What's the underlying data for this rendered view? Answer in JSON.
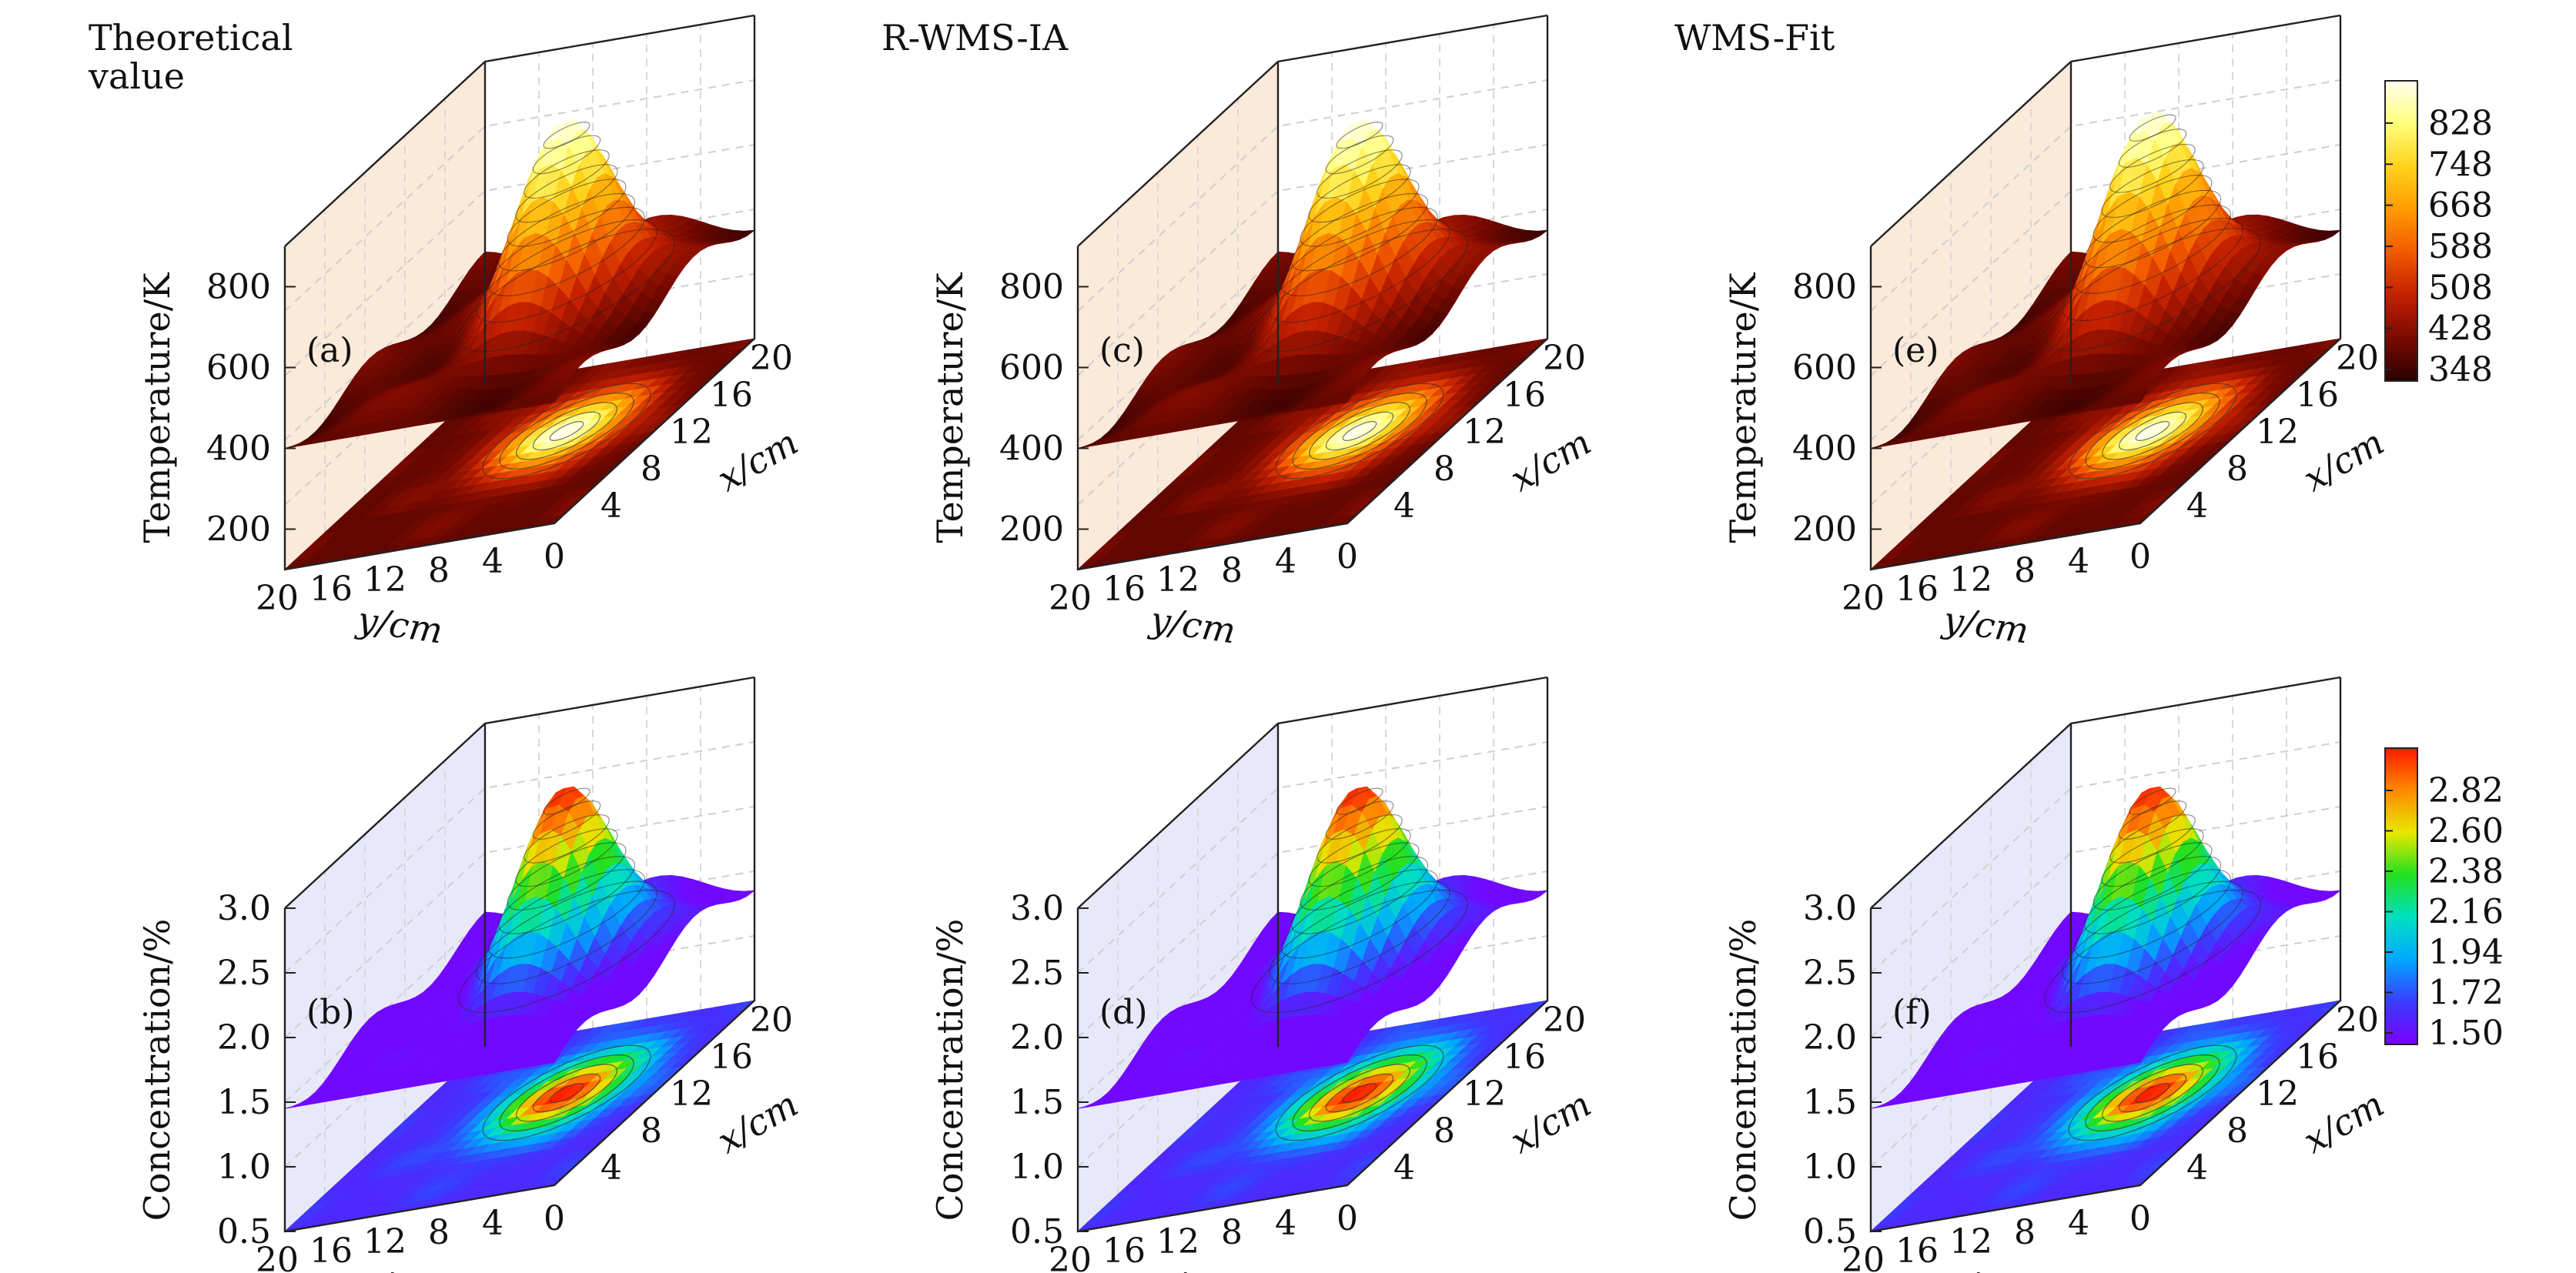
{
  "figure": {
    "rows": 2,
    "cols": 3
  },
  "colorbars": [
    {
      "name": "temperature-colorbar",
      "colormap": [
        "#2a0000",
        "#7a0a00",
        "#c42000",
        "#f25a00",
        "#ff9a00",
        "#ffd21a",
        "#ffff7a",
        "#ffffee"
      ],
      "ticks": [
        "828",
        "748",
        "668",
        "588",
        "508",
        "428",
        "348"
      ]
    },
    {
      "name": "concentration-colorbar",
      "colormap": [
        "#7a00ff",
        "#3b3bff",
        "#00a8ff",
        "#00e0c0",
        "#20e020",
        "#e8e800",
        "#ff8a00",
        "#ff1a00"
      ],
      "ticks": [
        "2.82",
        "2.60",
        "2.38",
        "2.16",
        "1.94",
        "1.72",
        "1.50"
      ]
    }
  ],
  "chart_data": [
    {
      "type": "surface",
      "panel_label": "(a)",
      "title": "Theoretical value",
      "zlabel": "Temperature/K",
      "xlabel": "x/cm",
      "ylabel": "y/cm",
      "zlim": [
        100,
        900
      ],
      "z_ticks": [
        "800",
        "600",
        "400",
        "200"
      ],
      "x_ticks": [
        "4",
        "8",
        "12",
        "16",
        "20"
      ],
      "y_ticks": [
        "20",
        "16",
        "12",
        "8",
        "4"
      ],
      "origin_tick": "0",
      "peak": {
        "x": 12,
        "y": 8,
        "z": 880
      },
      "base_level": 400,
      "min_value": 348,
      "colormap_index": 0
    },
    {
      "type": "surface",
      "panel_label": "(c)",
      "title": "R-WMS-IA",
      "zlabel": "Temperature/K",
      "xlabel": "x/cm",
      "ylabel": "y/cm",
      "zlim": [
        100,
        900
      ],
      "z_ticks": [
        "800",
        "600",
        "400",
        "200"
      ],
      "x_ticks": [
        "4",
        "8",
        "12",
        "16",
        "20"
      ],
      "y_ticks": [
        "20",
        "16",
        "12",
        "8",
        "4"
      ],
      "origin_tick": "0",
      "peak": {
        "x": 12,
        "y": 8,
        "z": 880
      },
      "base_level": 400,
      "min_value": 348,
      "colormap_index": 0
    },
    {
      "type": "surface",
      "panel_label": "(e)",
      "title": "WMS-Fit",
      "zlabel": "Temperature/K",
      "xlabel": "x/cm",
      "ylabel": "y/cm",
      "zlim": [
        100,
        900
      ],
      "z_ticks": [
        "800",
        "600",
        "400",
        "200"
      ],
      "x_ticks": [
        "4",
        "8",
        "12",
        "16",
        "20"
      ],
      "y_ticks": [
        "20",
        "16",
        "12",
        "8",
        "4"
      ],
      "origin_tick": "0",
      "peak": {
        "x": 12,
        "y": 8,
        "z": 900
      },
      "base_level": 400,
      "min_value": 348,
      "colormap_index": 0
    },
    {
      "type": "surface",
      "panel_label": "(b)",
      "title": "",
      "zlabel": "Concentration/%",
      "xlabel": "x/cm",
      "ylabel": "y/cm",
      "zlim": [
        0.5,
        3.0
      ],
      "z_ticks": [
        "3.0",
        "2.5",
        "2.0",
        "1.5",
        "1.0",
        "0.5"
      ],
      "x_ticks": [
        "4",
        "8",
        "12",
        "16",
        "20"
      ],
      "y_ticks": [
        "20",
        "16",
        "12",
        "8",
        "4"
      ],
      "origin_tick": "0",
      "peak": {
        "x": 12,
        "y": 8,
        "z": 2.9
      },
      "base_level": 1.45,
      "min_value": 1.5,
      "colormap_index": 1
    },
    {
      "type": "surface",
      "panel_label": "(d)",
      "title": "",
      "zlabel": "Concentration/%",
      "xlabel": "x/cm",
      "ylabel": "y/cm",
      "zlim": [
        0.5,
        3.0
      ],
      "z_ticks": [
        "3.0",
        "2.5",
        "2.0",
        "1.5",
        "1.0",
        "0.5"
      ],
      "x_ticks": [
        "4",
        "8",
        "12",
        "16",
        "20"
      ],
      "y_ticks": [
        "20",
        "16",
        "12",
        "8",
        "4"
      ],
      "origin_tick": "0",
      "peak": {
        "x": 12,
        "y": 8,
        "z": 2.9
      },
      "base_level": 1.45,
      "min_value": 1.5,
      "colormap_index": 1
    },
    {
      "type": "surface",
      "panel_label": "(f)",
      "title": "",
      "zlabel": "Concentration/%",
      "xlabel": "x/cm",
      "ylabel": "y/cm",
      "zlim": [
        0.5,
        3.0
      ],
      "z_ticks": [
        "3.0",
        "2.5",
        "2.0",
        "1.5",
        "1.0",
        "0.5"
      ],
      "x_ticks": [
        "4",
        "8",
        "12",
        "16",
        "20"
      ],
      "y_ticks": [
        "20",
        "16",
        "12",
        "8",
        "4"
      ],
      "origin_tick": "0",
      "peak": {
        "x": 12,
        "y": 8,
        "z": 2.9
      },
      "base_level": 1.45,
      "min_value": 1.5,
      "colormap_index": 1
    }
  ]
}
